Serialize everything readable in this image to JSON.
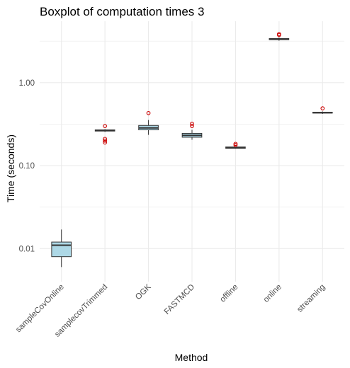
{
  "chart_data": {
    "type": "boxplot",
    "title": "Boxplot of computation times 3",
    "xlabel": "Method",
    "ylabel": "Time (seconds)",
    "y_scale": "log10",
    "ylim": [
      0.004,
      5.5
    ],
    "y_ticks": [
      0.01,
      0.1,
      1.0
    ],
    "y_tick_labels": [
      "0.01",
      "0.10",
      "1.00"
    ],
    "grid": true,
    "categories": [
      "sampleCovOnline",
      "samplecovTrimmed",
      "OGK",
      "FASTMCD",
      "offline",
      "online",
      "streaming"
    ],
    "boxes": [
      {
        "category": "sampleCovOnline",
        "whisker_low": 0.006,
        "q1": 0.008,
        "median": 0.011,
        "q3": 0.012,
        "whisker_high": 0.017,
        "outliers": []
      },
      {
        "category": "samplecovTrimmed",
        "whisker_low": 0.255,
        "q1": 0.261,
        "median": 0.265,
        "q3": 0.27,
        "whisker_high": 0.275,
        "outliers": [
          0.19,
          0.2,
          0.21,
          0.3
        ]
      },
      {
        "category": "OGK",
        "whisker_low": 0.235,
        "q1": 0.27,
        "median": 0.285,
        "q3": 0.305,
        "whisker_high": 0.355,
        "outliers": [
          0.43
        ]
      },
      {
        "category": "FASTMCD",
        "whisker_low": 0.205,
        "q1": 0.22,
        "median": 0.232,
        "q3": 0.245,
        "whisker_high": 0.27,
        "outliers": [
          0.3,
          0.32
        ]
      },
      {
        "category": "offline",
        "whisker_low": 0.16,
        "q1": 0.162,
        "median": 0.165,
        "q3": 0.168,
        "whisker_high": 0.171,
        "outliers": [
          0.177,
          0.183
        ]
      },
      {
        "category": "online",
        "whisker_low": 3.2,
        "q1": 3.3,
        "median": 3.35,
        "q3": 3.4,
        "whisker_high": 3.5,
        "outliers": [
          3.75,
          3.85
        ]
      },
      {
        "category": "streaming",
        "whisker_low": 0.42,
        "q1": 0.43,
        "median": 0.435,
        "q3": 0.44,
        "whisker_high": 0.45,
        "outliers": [
          0.49
        ]
      }
    ],
    "box_fill": "#add8e6",
    "box_stroke": "#333333",
    "outlier_color": "#cc0000",
    "grid_color": "#ebebeb"
  }
}
